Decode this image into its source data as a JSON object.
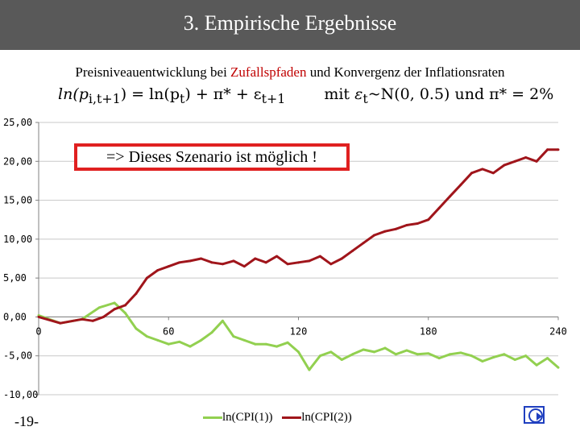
{
  "title": "3. Empirische Ergebnisse",
  "subtitle": {
    "before": "Preisniveauentwicklung bei ",
    "highlight": "Zufallspfaden",
    "after": " und Konvergenz der Inflationsraten"
  },
  "formula": {
    "left": "ln(p",
    "left_sub": "i,t+1",
    "mid": ") = ln(p",
    "mid_sub": "t",
    "rest": ") + π* + ε",
    "rest_sub": "t+1",
    "mit": "mit",
    "eps": "ε",
    "eps_sub": "t",
    "dist": "~N(0, 0.5)  und  π* = 2%"
  },
  "callout": "=> Dieses Szenario ist möglich !",
  "slide_number": "-19-",
  "nav_icon": "nav-forward-icon",
  "colors": {
    "title_bar": "#595959",
    "highlight": "#c00000",
    "series1": "#92d050",
    "series2": "#a0151b",
    "callout_border": "#e02020"
  },
  "chart_data": {
    "type": "line",
    "xlim": [
      0,
      240
    ],
    "ylim": [
      -10,
      25
    ],
    "x_ticks": [
      "0",
      "60",
      "120",
      "180",
      "240"
    ],
    "y_ticks": [
      "25,00",
      "20,00",
      "15,00",
      "10,00",
      "5,00",
      "0,00",
      "-5,00",
      "-10,00"
    ],
    "legend_position": "bottom",
    "series": [
      {
        "name": "ln(CPI(1))",
        "color": "#92d050",
        "x": [
          0,
          10,
          20,
          28,
          35,
          40,
          45,
          50,
          55,
          60,
          65,
          70,
          75,
          80,
          85,
          90,
          95,
          100,
          105,
          110,
          115,
          120,
          125,
          130,
          135,
          140,
          145,
          150,
          155,
          160,
          165,
          170,
          175,
          180,
          185,
          190,
          195,
          200,
          205,
          210,
          215,
          220,
          225,
          230,
          235,
          240
        ],
        "values": [
          0.2,
          -0.8,
          -0.3,
          1.2,
          1.8,
          0.5,
          -1.5,
          -2.5,
          -3.0,
          -3.5,
          -3.2,
          -3.8,
          -3.0,
          -2.0,
          -0.5,
          -2.5,
          -3.0,
          -3.5,
          -3.5,
          -3.8,
          -3.3,
          -4.5,
          -6.8,
          -5.0,
          -4.5,
          -5.5,
          -4.8,
          -4.2,
          -4.5,
          -4.0,
          -4.8,
          -4.3,
          -4.8,
          -4.7,
          -5.3,
          -4.8,
          -4.6,
          -5.0,
          -5.7,
          -5.2,
          -4.8,
          -5.5,
          -5.0,
          -6.2,
          -5.3,
          -6.5
        ]
      },
      {
        "name": "ln(CPI(2))",
        "color": "#a0151b",
        "x": [
          0,
          10,
          20,
          25,
          30,
          35,
          40,
          45,
          50,
          55,
          60,
          65,
          70,
          75,
          80,
          85,
          90,
          95,
          100,
          105,
          110,
          115,
          120,
          125,
          130,
          135,
          140,
          145,
          150,
          155,
          160,
          165,
          170,
          175,
          180,
          185,
          190,
          195,
          200,
          205,
          210,
          215,
          220,
          225,
          230,
          235,
          240
        ],
        "values": [
          0.0,
          -0.8,
          -0.3,
          -0.5,
          0.0,
          1.0,
          1.5,
          3.0,
          5.0,
          6.0,
          6.5,
          7.0,
          7.2,
          7.5,
          7.0,
          6.8,
          7.2,
          6.5,
          7.5,
          7.0,
          7.8,
          6.8,
          7.0,
          7.2,
          7.8,
          6.8,
          7.5,
          8.5,
          9.5,
          10.5,
          11.0,
          11.3,
          11.8,
          12.0,
          12.5,
          14.0,
          15.5,
          17.0,
          18.5,
          19.0,
          18.5,
          19.5,
          20.0,
          20.5,
          20.0,
          21.5,
          21.5
        ]
      }
    ]
  }
}
